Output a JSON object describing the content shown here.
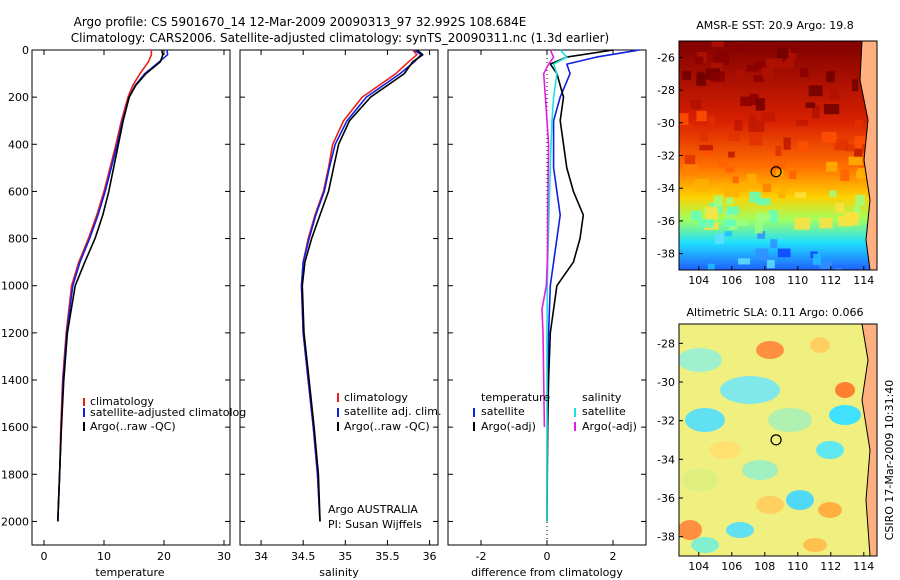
{
  "header": {
    "line1": "Argo profile: CS 5901670_14 12-Mar-2009 20090313_97 32.992S 108.684E",
    "line2": "Climatology: CARS2006. Satellite-adjusted climatology: synTS_20090311.nc (1.3d earlier)"
  },
  "side_note": "CSIRO 17-Mar-2009 10:31:40",
  "colors": {
    "climatology": "#e8201a",
    "satellite": "#1020e0",
    "argo": "#000000",
    "temp_sat": "#1020e0",
    "sal_sat": "#20e0e0",
    "sal_argo": "#e020e0"
  },
  "chart_data": [
    {
      "type": "line",
      "title": "",
      "xlabel": "temperature",
      "ylabel": "",
      "xlim": [
        -2,
        31
      ],
      "ylim": [
        2100,
        0
      ],
      "xticks": [
        0,
        10,
        20,
        30
      ],
      "yticks": [
        0,
        200,
        400,
        600,
        800,
        1000,
        1200,
        1400,
        1600,
        1800,
        2000
      ],
      "legend": [
        "climatology",
        "satellite-adjusted climatolog",
        "Argo(..raw -QC)"
      ],
      "series": [
        {
          "name": "climatology",
          "depth": [
            0,
            20,
            50,
            100,
            150,
            200,
            300,
            400,
            500,
            600,
            700,
            800,
            900,
            1000,
            1200,
            1400,
            1600,
            1800,
            2000
          ],
          "values": [
            17.9,
            17.9,
            17.4,
            16.0,
            14.8,
            14.0,
            12.9,
            12.0,
            11.0,
            10.0,
            8.8,
            7.4,
            5.8,
            4.6,
            3.7,
            3.1,
            2.8,
            2.6,
            2.3
          ]
        },
        {
          "name": "satellite-adjusted climatolog",
          "depth": [
            0,
            20,
            50,
            100,
            150,
            200,
            300,
            400,
            500,
            600,
            700,
            800,
            900,
            1000,
            1200,
            1400,
            1600,
            1800,
            2000
          ],
          "values": [
            20.5,
            20.6,
            19.2,
            16.8,
            15.2,
            14.2,
            13.1,
            12.2,
            11.2,
            10.2,
            9.0,
            7.6,
            6.0,
            4.8,
            3.8,
            3.2,
            2.9,
            2.6,
            2.3
          ]
        },
        {
          "name": "Argo(..raw -QC)",
          "depth": [
            0,
            20,
            50,
            100,
            150,
            200,
            300,
            400,
            500,
            600,
            700,
            800,
            900,
            1000,
            1200,
            1400,
            1600,
            1800,
            2000
          ],
          "values": [
            19.6,
            19.8,
            19.4,
            17.0,
            15.3,
            14.2,
            13.2,
            12.4,
            11.6,
            10.8,
            9.8,
            8.5,
            6.8,
            5.2,
            3.9,
            3.3,
            2.9,
            2.6,
            2.3
          ]
        }
      ]
    },
    {
      "type": "line",
      "title": "",
      "xlabel": "salinity",
      "ylabel": "",
      "xlim": [
        33.75,
        36.1
      ],
      "ylim": [
        2100,
        0
      ],
      "xticks": [
        34,
        34.5,
        35,
        35.5,
        36
      ],
      "legend": [
        "climatology",
        "satellite adj. clim.",
        "Argo(..raw -QC)"
      ],
      "series": [
        {
          "name": "climatology",
          "depth": [
            0,
            20,
            50,
            100,
            200,
            300,
            400,
            500,
            600,
            700,
            800,
            900,
            1000,
            1200,
            1400,
            1600,
            1800,
            2000
          ],
          "values": [
            35.8,
            35.85,
            35.75,
            35.6,
            35.2,
            34.98,
            34.85,
            34.8,
            34.74,
            34.64,
            34.56,
            34.5,
            34.48,
            34.5,
            34.56,
            34.62,
            34.67,
            34.7
          ]
        },
        {
          "name": "satellite adj. clim.",
          "depth": [
            0,
            20,
            50,
            100,
            200,
            300,
            400,
            500,
            600,
            700,
            800,
            900,
            1000,
            1200,
            1400,
            1600,
            1800,
            2000
          ],
          "values": [
            35.82,
            35.9,
            35.82,
            35.65,
            35.25,
            35.02,
            34.88,
            34.81,
            34.75,
            34.65,
            34.57,
            34.5,
            34.48,
            34.5,
            34.56,
            34.62,
            34.67,
            34.7
          ]
        },
        {
          "name": "Argo(..raw -QC)",
          "depth": [
            0,
            20,
            50,
            100,
            200,
            300,
            400,
            500,
            600,
            700,
            800,
            900,
            1000,
            1200,
            1400,
            1600,
            1800,
            2000
          ],
          "values": [
            35.85,
            35.92,
            35.8,
            35.7,
            35.3,
            35.05,
            34.92,
            34.86,
            34.8,
            34.7,
            34.6,
            34.52,
            34.49,
            34.51,
            34.57,
            34.63,
            34.68,
            34.7
          ]
        }
      ],
      "annotation": [
        "Argo AUSTRALIA",
        "PI: Susan Wijffels"
      ]
    },
    {
      "type": "line",
      "title": "",
      "xlabel": "difference from climatology",
      "ylabel": "",
      "xlim": [
        -3,
        3
      ],
      "ylim": [
        2100,
        0
      ],
      "xticks": [
        -2,
        0,
        2
      ],
      "legend_titles": [
        "temperature",
        "salinity"
      ],
      "legend": [
        "satellite",
        "Argo(-adj)",
        "satellite",
        "Argo(-adj)"
      ],
      "series": [
        {
          "name": "temperature satellite",
          "depth": [
            0,
            30,
            60,
            100,
            200,
            300,
            400,
            500,
            600,
            700,
            800,
            900,
            1000,
            1200,
            1400,
            1600,
            1800,
            2000
          ],
          "values": [
            2.8,
            1.5,
            0.6,
            0.7,
            0.4,
            0.2,
            0.2,
            0.2,
            0.3,
            0.4,
            0.3,
            0.2,
            0.1,
            0.05,
            0.02,
            0.01,
            0.0,
            0.0
          ]
        },
        {
          "name": "temperature Argo(-adj)",
          "depth": [
            0,
            30,
            60,
            100,
            200,
            300,
            400,
            500,
            600,
            700,
            800,
            900,
            1000,
            1200,
            1400,
            1600,
            1800,
            2000
          ],
          "values": [
            2.0,
            0.6,
            0.1,
            0.3,
            0.5,
            0.4,
            0.5,
            0.6,
            0.8,
            1.1,
            1.0,
            0.8,
            0.3,
            0.1,
            0.05,
            0.02,
            0.01,
            0.0
          ]
        },
        {
          "name": "salinity satellite",
          "depth": [
            0,
            30,
            60,
            100,
            200,
            300,
            400,
            500,
            600,
            700,
            800,
            900,
            1000,
            1200,
            1400,
            1600,
            1800,
            2000
          ],
          "values": [
            0.4,
            0.6,
            0.2,
            0.3,
            0.2,
            0.15,
            0.12,
            0.1,
            0.08,
            0.06,
            0.04,
            0.02,
            0.01,
            0.0,
            0.0,
            0.0,
            0.0,
            0.0
          ]
        },
        {
          "name": "salinity Argo(-adj)",
          "depth": [
            0,
            30,
            60,
            100,
            200,
            300,
            400,
            500,
            600,
            700,
            800,
            900,
            1000,
            1100,
            1200,
            1400,
            1600
          ],
          "values": [
            0.1,
            0.2,
            0.05,
            -0.1,
            -0.05,
            0.0,
            0.05,
            0.04,
            0.03,
            0.02,
            0.02,
            0.01,
            -0.02,
            -0.15,
            -0.12,
            -0.1,
            -0.08
          ]
        }
      ]
    },
    {
      "type": "heatmap",
      "title": "AMSR-E SST: 20.9 Argo: 19.8",
      "xlim": [
        102.8,
        114.8
      ],
      "ylim": [
        -39,
        -25
      ],
      "xticks": [
        104,
        106,
        108,
        110,
        112,
        114
      ],
      "yticks": [
        -26,
        -28,
        -30,
        -32,
        -34,
        -36,
        -38
      ],
      "marker": {
        "lon": 108.684,
        "lat": -32.992
      }
    },
    {
      "type": "heatmap",
      "title": "Altimetric SLA: 0.11 Argo: 0.066",
      "xlim": [
        102.8,
        114.8
      ],
      "ylim": [
        -39,
        -27
      ],
      "xticks": [
        104,
        106,
        108,
        110,
        112,
        114
      ],
      "yticks": [
        -28,
        -30,
        -32,
        -34,
        -36,
        -38
      ],
      "marker": {
        "lon": 108.684,
        "lat": -32.992
      }
    }
  ]
}
